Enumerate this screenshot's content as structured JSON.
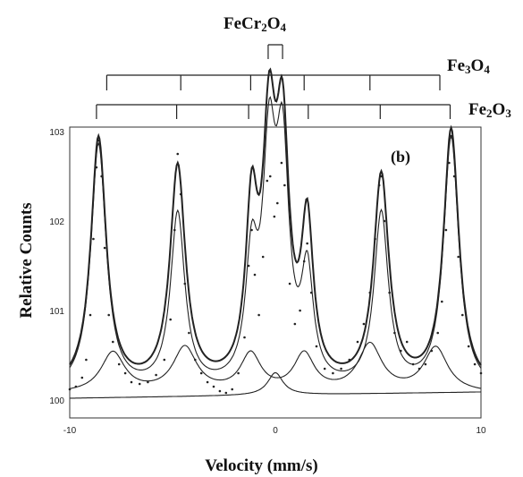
{
  "chart_data": {
    "type": "scatter",
    "panel_label": "(b)",
    "xlabel": "Velocity (mm/s)",
    "ylabel": "Relative Counts",
    "xlim": [
      -10,
      10
    ],
    "ylim": [
      100,
      103
    ],
    "x_ticks": [
      "-10",
      "0",
      "10"
    ],
    "y_ticks": [
      "100",
      "101",
      "102",
      "103"
    ],
    "stick_diagrams": [
      {
        "formula_html": "FeCr<sub>2</sub>O<sub>4</sub>",
        "lines": [
          -0.35,
          0.35
        ]
      },
      {
        "formula_html": "Fe<sub>3</sub>O<sub>4</sub>",
        "lines": [
          -8.2,
          -4.6,
          -1.2,
          1.4,
          4.6,
          8.0
        ]
      },
      {
        "formula_html": "Fe<sub>2</sub>O<sub>3</sub>",
        "lines": [
          -8.7,
          -4.8,
          -1.3,
          1.6,
          5.1,
          8.5
        ]
      }
    ],
    "series": [
      {
        "kind": "fit-total",
        "baseline": 100.1,
        "slope": 0.0,
        "peaks": [
          [
            -8.6,
            2.8,
            0.45
          ],
          [
            -4.75,
            2.45,
            0.45
          ],
          [
            -1.15,
            1.82,
            0.35
          ],
          [
            -0.3,
            2.55,
            0.38
          ],
          [
            0.35,
            2.55,
            0.38
          ],
          [
            1.55,
            1.72,
            0.35
          ],
          [
            5.15,
            2.35,
            0.45
          ],
          [
            8.55,
            2.88,
            0.45
          ]
        ]
      },
      {
        "kind": "fit-component",
        "baseline": 100.08,
        "slope": 0.0,
        "peaks": [
          [
            -8.6,
            2.75,
            0.45
          ],
          [
            -4.75,
            1.95,
            0.42
          ],
          [
            -1.15,
            1.3,
            0.35
          ],
          [
            -0.3,
            2.4,
            0.38
          ],
          [
            0.35,
            2.4,
            0.38
          ],
          [
            1.55,
            1.2,
            0.35
          ],
          [
            5.15,
            1.95,
            0.42
          ],
          [
            8.55,
            2.82,
            0.45
          ]
        ]
      },
      {
        "kind": "fit-component",
        "baseline": 100.07,
        "slope": 0.0,
        "peaks": [
          [
            -7.9,
            0.45,
            0.7
          ],
          [
            -4.4,
            0.5,
            0.7
          ],
          [
            -1.2,
            0.42,
            0.6
          ],
          [
            1.4,
            0.42,
            0.6
          ],
          [
            4.6,
            0.53,
            0.7
          ],
          [
            7.8,
            0.5,
            0.7
          ]
        ]
      },
      {
        "kind": "fit-component",
        "baseline": 100.02,
        "slope": 0.0035,
        "peaks": [
          [
            0.0,
            0.25,
            0.45
          ]
        ]
      }
    ],
    "points": [
      [
        -10.0,
        100.12
      ],
      [
        -9.7,
        100.15
      ],
      [
        -9.4,
        100.25
      ],
      [
        -9.2,
        100.45
      ],
      [
        -9.0,
        100.95
      ],
      [
        -8.85,
        101.8
      ],
      [
        -8.7,
        102.6
      ],
      [
        -8.6,
        102.9
      ],
      [
        -8.45,
        102.5
      ],
      [
        -8.3,
        101.7
      ],
      [
        -8.1,
        100.95
      ],
      [
        -7.9,
        100.65
      ],
      [
        -7.6,
        100.4
      ],
      [
        -7.3,
        100.3
      ],
      [
        -7.0,
        100.2
      ],
      [
        -6.6,
        100.18
      ],
      [
        -6.2,
        100.2
      ],
      [
        -5.8,
        100.28
      ],
      [
        -5.4,
        100.45
      ],
      [
        -5.1,
        100.9
      ],
      [
        -4.9,
        101.9
      ],
      [
        -4.75,
        102.75
      ],
      [
        -4.6,
        102.3
      ],
      [
        -4.4,
        101.3
      ],
      [
        -4.2,
        100.75
      ],
      [
        -3.9,
        100.45
      ],
      [
        -3.6,
        100.3
      ],
      [
        -3.3,
        100.2
      ],
      [
        -3.0,
        100.15
      ],
      [
        -2.7,
        100.1
      ],
      [
        -2.4,
        100.08
      ],
      [
        -2.1,
        100.12
      ],
      [
        -1.8,
        100.3
      ],
      [
        -1.5,
        100.7
      ],
      [
        -1.3,
        101.5
      ],
      [
        -1.15,
        101.9
      ],
      [
        -1.0,
        101.4
      ],
      [
        -0.8,
        100.95
      ],
      [
        -0.6,
        101.6
      ],
      [
        -0.4,
        102.45
      ],
      [
        -0.25,
        102.5
      ],
      [
        -0.05,
        102.05
      ],
      [
        0.1,
        102.2
      ],
      [
        0.3,
        102.65
      ],
      [
        0.45,
        102.4
      ],
      [
        0.7,
        101.3
      ],
      [
        0.95,
        100.85
      ],
      [
        1.2,
        101.0
      ],
      [
        1.4,
        101.55
      ],
      [
        1.55,
        101.75
      ],
      [
        1.75,
        101.2
      ],
      [
        2.0,
        100.6
      ],
      [
        2.4,
        100.35
      ],
      [
        2.8,
        100.3
      ],
      [
        3.2,
        100.35
      ],
      [
        3.6,
        100.45
      ],
      [
        4.0,
        100.65
      ],
      [
        4.3,
        100.85
      ],
      [
        4.6,
        101.2
      ],
      [
        4.85,
        101.8
      ],
      [
        5.05,
        102.4
      ],
      [
        5.15,
        102.5
      ],
      [
        5.3,
        102.0
      ],
      [
        5.55,
        101.2
      ],
      [
        5.8,
        100.75
      ],
      [
        6.1,
        100.55
      ],
      [
        6.4,
        100.65
      ],
      [
        6.7,
        100.4
      ],
      [
        7.0,
        100.35
      ],
      [
        7.3,
        100.4
      ],
      [
        7.6,
        100.55
      ],
      [
        7.9,
        100.75
      ],
      [
        8.1,
        101.1
      ],
      [
        8.3,
        101.9
      ],
      [
        8.45,
        102.65
      ],
      [
        8.55,
        102.95
      ],
      [
        8.7,
        102.5
      ],
      [
        8.9,
        101.6
      ],
      [
        9.1,
        100.95
      ],
      [
        9.4,
        100.6
      ],
      [
        9.7,
        100.4
      ],
      [
        10.0,
        100.3
      ]
    ]
  }
}
